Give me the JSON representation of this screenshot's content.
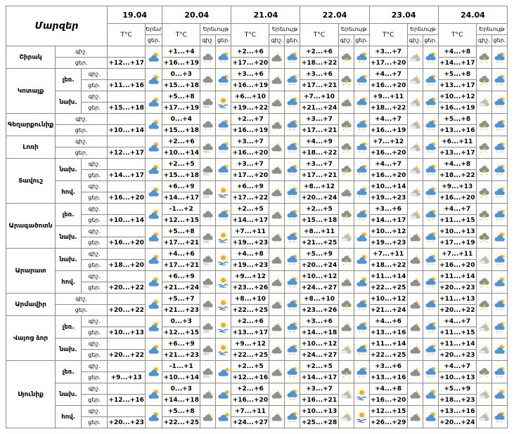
{
  "colors": {
    "border": "#8d8d7f",
    "background": "#ffffff",
    "text": "#000000",
    "cloud_blue": "#4e93d2",
    "cloud_gray": "#8f8f8f",
    "sun_orange": "#f7a91c",
    "moon_yellow": "#f0c33c"
  },
  "icon_legend": {
    "pcd": "sun-behind-cloud-day-icon",
    "cld": "cloudy-with-sun-day-icon",
    "rsd": "sun-cloud-precipitation-day-icon",
    "fd": "sun-over-fog-day-icon",
    "rn": "cloud-precipitation-night-icon",
    "fn": "moon-cloud-fog-night-icon",
    "cn": "moon-behind-cloud-night-icon",
    "pn": "moon-light-clouds-night-icon",
    "sn": "moon-cloud-thunder-night-icon"
  },
  "chart_data": {
    "type": "table",
    "title": "Մարզեր",
    "dates": [
      "19.04",
      "20.04",
      "21.04",
      "22.04",
      "23.04",
      "24.04"
    ],
    "col_labels": {
      "temp": "T°C",
      "phenomenon": "Երեւույթ",
      "night": "գիշ.",
      "day": "ցեր."
    },
    "regions": [
      {
        "name": "Շիրակ",
        "zones": [
          {
            "label": "",
            "day0": {
              "temp": "+12...+17",
              "icon": "pcd"
            },
            "days": [
              {
                "night": "+1...+4",
                "day": "+16...+19",
                "night_icon": "rn",
                "day_icon": "rsd"
              },
              {
                "night": "+2...+6",
                "day": "+17...+20",
                "night_icon": "cn",
                "day_icon": "rsd"
              },
              {
                "night": "+2...+6",
                "day": "+18...+22",
                "night_icon": "sn",
                "day_icon": "rsd"
              },
              {
                "night": "+3...+7",
                "day": "+17...+20",
                "night_icon": "pn",
                "day_icon": "rsd"
              },
              {
                "night": "+4...+8",
                "day": "+14...+17",
                "night_icon": "sn",
                "day_icon": "rsd"
              }
            ]
          }
        ]
      },
      {
        "name": "Կոտայք",
        "zones": [
          {
            "label": "լեռ.",
            "day0": {
              "temp": "+11...+16",
              "icon": "pcd"
            },
            "days": [
              {
                "night": "0...+3",
                "day": "+15...+18",
                "night_icon": "rn",
                "day_icon": "rsd"
              },
              {
                "night": "+3...+6",
                "day": "+16...+19",
                "night_icon": "cn",
                "day_icon": "rsd"
              },
              {
                "night": "+3...+6",
                "day": "+17...+21",
                "night_icon": "sn",
                "day_icon": "rsd"
              },
              {
                "night": "+4...+7",
                "day": "+16...+20",
                "night_icon": "pn",
                "day_icon": "rsd"
              },
              {
                "night": "+5...+8",
                "day": "+13...+17",
                "night_icon": "sn",
                "day_icon": "rsd"
              }
            ]
          },
          {
            "label": "նախ.",
            "day0": {
              "temp": "+15...+18",
              "icon": "pcd"
            },
            "days": [
              {
                "night": "+5...+8",
                "day": "+17...+19",
                "night_icon": "fn",
                "day_icon": "fd"
              },
              {
                "night": "+6...+10",
                "day": "+19...+22",
                "night_icon": "cn",
                "day_icon": "rsd"
              },
              {
                "night": "+7...+10",
                "day": "+21...+24",
                "night_icon": "cn",
                "day_icon": "rsd"
              },
              {
                "night": "+9...+11",
                "day": "+18...+22",
                "night_icon": "pn",
                "day_icon": "rsd"
              },
              {
                "night": "+10...+12",
                "day": "+16...+19",
                "night_icon": "pn",
                "day_icon": "rsd"
              }
            ]
          }
        ]
      },
      {
        "name": "Գեղարքունիք",
        "zones": [
          {
            "label": "",
            "day0": {
              "temp": "+10...+14",
              "icon": "pcd"
            },
            "days": [
              {
                "night": "0...+4",
                "day": "+15...+18",
                "night_icon": "rn",
                "day_icon": "rsd"
              },
              {
                "night": "+2...+7",
                "day": "+16...+19",
                "night_icon": "cn",
                "day_icon": "rsd"
              },
              {
                "night": "+3...+7",
                "day": "+17...+21",
                "night_icon": "sn",
                "day_icon": "rsd"
              },
              {
                "night": "+4...+7",
                "day": "+16...+19",
                "night_icon": "pn",
                "day_icon": "rsd"
              },
              {
                "night": "+5...+8",
                "day": "+13...+16",
                "night_icon": "sn",
                "day_icon": "rsd"
              }
            ]
          }
        ]
      },
      {
        "name": "Լոռի",
        "zones": [
          {
            "label": "",
            "day0": {
              "temp": "+12...+17",
              "icon": "pcd"
            },
            "days": [
              {
                "night": "+2...+6",
                "day": "+10...+14",
                "night_icon": "fn",
                "day_icon": "rsd"
              },
              {
                "night": "+3...+7",
                "day": "+16...+20",
                "night_icon": "cn",
                "day_icon": "rsd"
              },
              {
                "night": "+4...+9",
                "day": "+18...+22",
                "night_icon": "sn",
                "day_icon": "rsd"
              },
              {
                "night": "+7...+12",
                "day": "+16...+20",
                "night_icon": "pn",
                "day_icon": "rsd"
              },
              {
                "night": "+6...+11",
                "day": "+13...+17",
                "night_icon": "sn",
                "day_icon": "rsd"
              }
            ]
          }
        ]
      },
      {
        "name": "Տավուշ",
        "zones": [
          {
            "label": "նախ.",
            "day0": {
              "temp": "+14...+17",
              "icon": "pcd"
            },
            "days": [
              {
                "night": "+2...+5",
                "day": "+15...+18",
                "night_icon": "fn",
                "day_icon": "rsd"
              },
              {
                "night": "+3...+7",
                "day": "+17...+20",
                "night_icon": "cn",
                "day_icon": "rsd"
              },
              {
                "night": "+3...+7",
                "day": "+17...+21",
                "night_icon": "sn",
                "day_icon": "rsd"
              },
              {
                "night": "+4...+7",
                "day": "+16...+20",
                "night_icon": "pn",
                "day_icon": "rsd"
              },
              {
                "night": "+4...+8",
                "day": "+18...+22",
                "night_icon": "sn",
                "day_icon": "rsd"
              }
            ]
          },
          {
            "label": "հով.",
            "day0": {
              "temp": "+16...+20",
              "icon": "pcd"
            },
            "days": [
              {
                "night": "+6...+9",
                "day": "+14...+17",
                "night_icon": "fn",
                "day_icon": "fd"
              },
              {
                "night": "+6...+9",
                "day": "+17...+22",
                "night_icon": "cn",
                "day_icon": "rsd"
              },
              {
                "night": "+8...+12",
                "day": "+20...+24",
                "night_icon": "cn",
                "day_icon": "rsd"
              },
              {
                "night": "+10...+14",
                "day": "+19...+23",
                "night_icon": "pn",
                "day_icon": "rsd"
              },
              {
                "night": "+9...+13",
                "day": "+16...+20",
                "night_icon": "sn",
                "day_icon": "rsd"
              }
            ]
          }
        ]
      },
      {
        "name": "Արագածոտն",
        "zones": [
          {
            "label": "լեռ.",
            "day0": {
              "temp": "+10...+14",
              "icon": "pcd"
            },
            "days": [
              {
                "night": "-1...+2",
                "day": "+12...+15",
                "night_icon": "rn",
                "day_icon": "rsd"
              },
              {
                "night": "+2...+5",
                "day": "+14...+17",
                "night_icon": "cn",
                "day_icon": "rsd"
              },
              {
                "night": "+2...+5",
                "day": "+15...+18",
                "night_icon": "sn",
                "day_icon": "rsd"
              },
              {
                "night": "+3...+6",
                "day": "+14...+17",
                "night_icon": "pn",
                "day_icon": "rsd"
              },
              {
                "night": "+4...+7",
                "day": "+11...+15",
                "night_icon": "sn",
                "day_icon": "rsd"
              }
            ]
          },
          {
            "label": "նախ.",
            "day0": {
              "temp": "+16...+20",
              "icon": "pcd"
            },
            "days": [
              {
                "night": "+5...+8",
                "day": "+17...+21",
                "night_icon": "fn",
                "day_icon": "fd"
              },
              {
                "night": "+7...+11",
                "day": "+19...+23",
                "night_icon": "cn",
                "day_icon": "rsd"
              },
              {
                "night": "+8...+11",
                "day": "+21...+25",
                "night_icon": "pn",
                "day_icon": "pcd"
              },
              {
                "night": "+10...+12",
                "day": "+19...+23",
                "night_icon": "cn",
                "day_icon": "rsd"
              },
              {
                "night": "+10...+13",
                "day": "+17...+19",
                "night_icon": "sn",
                "day_icon": "pcd"
              }
            ]
          }
        ]
      },
      {
        "name": "Արարատ",
        "zones": [
          {
            "label": "նախ.",
            "day0": {
              "temp": "+18...+20",
              "icon": "pcd"
            },
            "days": [
              {
                "night": "+4...+6",
                "day": "+17...+21",
                "night_icon": "fn",
                "day_icon": "fd"
              },
              {
                "night": "+4...+8",
                "day": "+19...+23",
                "night_icon": "cn",
                "day_icon": "rsd"
              },
              {
                "night": "+5...+9",
                "day": "+20...+24",
                "night_icon": "sn",
                "day_icon": "pcd"
              },
              {
                "night": "+7...+11",
                "day": "+18...+22",
                "night_icon": "cn",
                "day_icon": "rsd"
              },
              {
                "night": "+7...+11",
                "day": "+16...+20",
                "night_icon": "pn",
                "day_icon": "rsd"
              }
            ]
          },
          {
            "label": "հով.",
            "day0": {
              "temp": "+20...+22",
              "icon": "pcd"
            },
            "days": [
              {
                "night": "+6...+9",
                "day": "+21...+24",
                "night_icon": "fn",
                "day_icon": "fd"
              },
              {
                "night": "+9...+12",
                "day": "+23...+26",
                "night_icon": "cn",
                "day_icon": "rsd"
              },
              {
                "night": "+10...+12",
                "day": "+24...+27",
                "night_icon": "cn",
                "day_icon": "pcd"
              },
              {
                "night": "+11...+14",
                "day": "+22...+25",
                "night_icon": "cn",
                "day_icon": "rsd"
              },
              {
                "night": "+11...+14",
                "day": "+20...+23",
                "night_icon": "sn",
                "day_icon": "pcd"
              }
            ]
          }
        ]
      },
      {
        "name": "Արմավիր",
        "zones": [
          {
            "label": "",
            "day0": {
              "temp": "+20...+22",
              "icon": "pcd"
            },
            "days": [
              {
                "night": "+5...+7",
                "day": "+21...+23",
                "night_icon": "fn",
                "day_icon": "fd"
              },
              {
                "night": "+8...+10",
                "day": "+22...+25",
                "night_icon": "cn",
                "day_icon": "rsd"
              },
              {
                "night": "+8...+10",
                "day": "+23...+26",
                "night_icon": "sn",
                "day_icon": "rsd"
              },
              {
                "night": "+10...+12",
                "day": "+21...+24",
                "night_icon": "cn",
                "day_icon": "rsd"
              },
              {
                "night": "+11...+13",
                "day": "+20...+22",
                "night_icon": "sn",
                "day_icon": "rsd"
              }
            ]
          }
        ]
      },
      {
        "name": "Վայոց ձոր",
        "zones": [
          {
            "label": "լեռ.",
            "day0": {
              "temp": "+10...+13",
              "icon": "pcd"
            },
            "days": [
              {
                "night": "0...+3",
                "day": "+12...+15",
                "night_icon": "fn",
                "day_icon": "fd"
              },
              {
                "night": "+2...+6",
                "day": "+13...+17",
                "night_icon": "cn",
                "day_icon": "rsd"
              },
              {
                "night": "+3...+6",
                "day": "+14...+18",
                "night_icon": "cn",
                "day_icon": "rsd"
              },
              {
                "night": "+4...+6",
                "day": "+13...+16",
                "night_icon": "cn",
                "day_icon": "rsd"
              },
              {
                "night": "+4...+7",
                "day": "+11...+15",
                "night_icon": "pn",
                "day_icon": "rsd"
              }
            ]
          },
          {
            "label": "նախ.",
            "day0": {
              "temp": "+20...+22",
              "icon": "pcd"
            },
            "days": [
              {
                "night": "+6...+9",
                "day": "+21...+23",
                "night_icon": "fn",
                "day_icon": "fd"
              },
              {
                "night": "+9...+12",
                "day": "+22...+25",
                "night_icon": "cn",
                "day_icon": "rsd"
              },
              {
                "night": "+10...+12",
                "day": "+24...+27",
                "night_icon": "pn",
                "day_icon": "rsd"
              },
              {
                "night": "+11...+14",
                "day": "+22...+25",
                "night_icon": "cn",
                "day_icon": "rsd"
              },
              {
                "night": "+11...+14",
                "day": "+20...+23",
                "night_icon": "pn",
                "day_icon": "pcd"
              }
            ]
          }
        ]
      },
      {
        "name": "Սյունիք",
        "zones": [
          {
            "label": "լեռ.",
            "day0": {
              "temp": "+9...+13",
              "icon": "pcd"
            },
            "days": [
              {
                "night": "-1...+1",
                "day": "+10...+14",
                "night_icon": "fn",
                "day_icon": "cld"
              },
              {
                "night": "+2...+5",
                "day": "+12...+16",
                "night_icon": "cn",
                "day_icon": "rsd"
              },
              {
                "night": "+2...+5",
                "day": "+14...+17",
                "night_icon": "sn",
                "day_icon": "rsd"
              },
              {
                "night": "+3...+6",
                "day": "+13...+16",
                "night_icon": "cn",
                "day_icon": "rsd"
              },
              {
                "night": "+4...+7",
                "day": "+10...+13",
                "night_icon": "sn",
                "day_icon": "rsd"
              }
            ]
          },
          {
            "label": "նախ.",
            "day0": {
              "temp": "+12...+16",
              "icon": "pcd"
            },
            "days": [
              {
                "night": "0...+3",
                "day": "+14...+18",
                "night_icon": "cn",
                "day_icon": "cld"
              },
              {
                "night": "+2...+6",
                "day": "+16...+20",
                "night_icon": "cn",
                "day_icon": "rsd"
              },
              {
                "night": "+3...+7",
                "day": "+16...+21",
                "night_icon": "pn",
                "day_icon": "fd"
              },
              {
                "night": "+4...+8",
                "day": "+16...+20",
                "night_icon": "cn",
                "day_icon": "pcd"
              },
              {
                "night": "+5...+9",
                "day": "+18...+23",
                "night_icon": "pn",
                "day_icon": "pcd"
              }
            ]
          },
          {
            "label": "հով.",
            "day0": {
              "temp": "+20...+23",
              "icon": "pcd"
            },
            "days": [
              {
                "night": "+5...+8",
                "day": "+22...+25",
                "night_icon": "cn",
                "day_icon": "cld"
              },
              {
                "night": "+7...+11",
                "day": "+24...+27",
                "night_icon": "cn",
                "day_icon": "rsd"
              },
              {
                "night": "+10...+13",
                "day": "+25...+28",
                "night_icon": "pn",
                "day_icon": "fd"
              },
              {
                "night": "+12...+15",
                "day": "+26...+29",
                "night_icon": "cn",
                "day_icon": "pcd"
              },
              {
                "night": "+13...+16",
                "day": "+20...+24",
                "night_icon": "pn",
                "day_icon": "rsd"
              }
            ]
          }
        ]
      }
    ]
  }
}
